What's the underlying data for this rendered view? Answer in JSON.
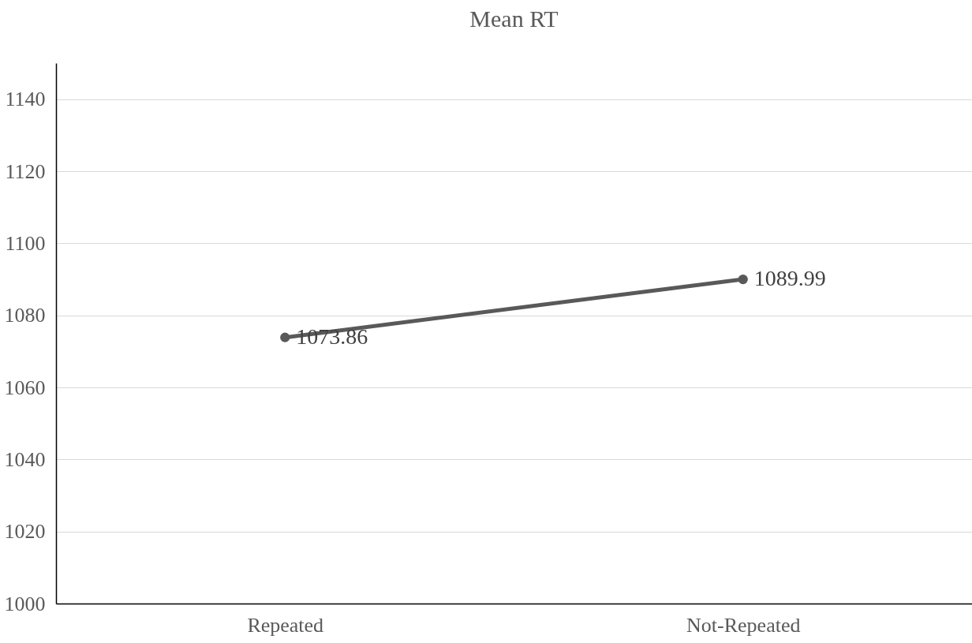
{
  "chart_data": {
    "type": "line",
    "title": "Mean RT",
    "categories": [
      "Repeated",
      "Not-Repeated"
    ],
    "series": [
      {
        "color": "#595959",
        "values": [
          1073.86,
          1089.99
        ]
      }
    ],
    "ylim": [
      1000,
      1150
    ],
    "yticks": [
      1000,
      1020,
      1040,
      1060,
      1080,
      1100,
      1120,
      1140
    ],
    "grid": "y",
    "marker": "circle",
    "line_style": "solid",
    "data_labels": true,
    "legend": false
  }
}
